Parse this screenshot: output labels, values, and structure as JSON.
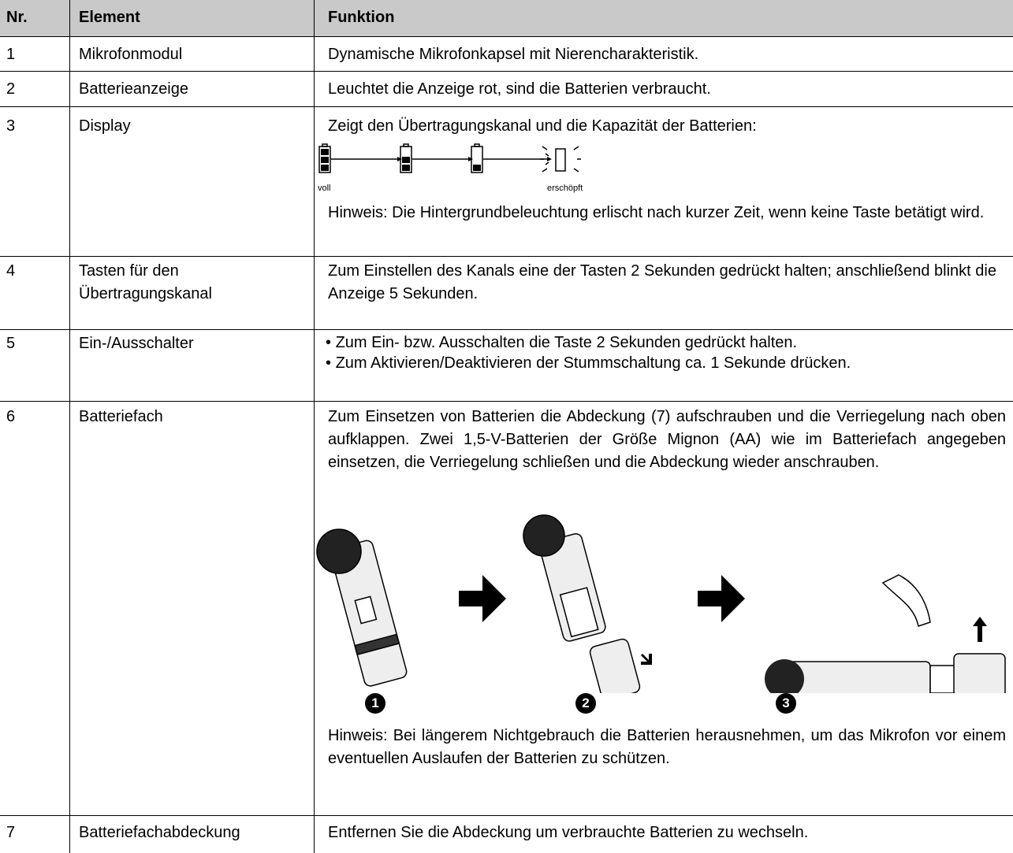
{
  "table": {
    "header": [
      "Nr.",
      "Element",
      "Funktion"
    ],
    "rows": [
      {
        "nr": "1",
        "element": "Mikrofonmodul",
        "function": "Dynamische Mikrofonkapsel mit Nierencharakteristik."
      },
      {
        "nr": "2",
        "element": "Batterieanzeige",
        "function": "Leuchtet die Anzeige rot, sind die Batterien verbraucht."
      },
      {
        "nr": "3",
        "element": "Display",
        "function": "Zeigt den Übertragungskanal und die Kapazität der Batterien:",
        "battery_labels": [
          "voll",
          "erschöpft"
        ],
        "note": "Hinweis: Die Hintergrundbeleuchtung erlischt nach kurzer Zeit, wenn keine Taste betätigt wird."
      },
      {
        "nr": "4",
        "element": "Tasten für den Übertragungskanal",
        "function": "Zum Einstellen des Kanals eine der Tasten 2 Sekunden gedrückt halten; anschließend blinkt die Anzeige 5 Sekunden."
      },
      {
        "nr": "5",
        "element": "Ein-/Ausschalter",
        "bullets": [
          "Zum Ein- bzw. Ausschalten die Taste 2 Sekunden gedrückt halten.",
          "Zum Aktivieren/Deaktivieren der Stummschaltung ca. 1 Sekunde drücken."
        ]
      },
      {
        "nr": "6",
        "element": "Batteriefach",
        "function": "Zum Einsetzen von Batterien die Abdeckung (7) aufschrauben und die Verriegelung nach oben aufklappen. Zwei 1,5-V-Batterien der Größe Mignon (AA) wie im Batteriefach angegeben einsetzen, die Verriegelung schließen und die Abdeckung wieder anschrauben.",
        "steps": [
          "1",
          "2",
          "3"
        ],
        "note": "Hinweis: Bei längerem Nichtgebrauch die Batterien herausnehmen, um das Mikrofon vor einem eventuellen Auslaufen der Batterien zu schützen."
      },
      {
        "nr": "7",
        "element": "Batteriefachabdeckung",
        "function": "Entfernen Sie die Abdeckung um verbrauchte Batterien zu wechseln."
      }
    ]
  }
}
